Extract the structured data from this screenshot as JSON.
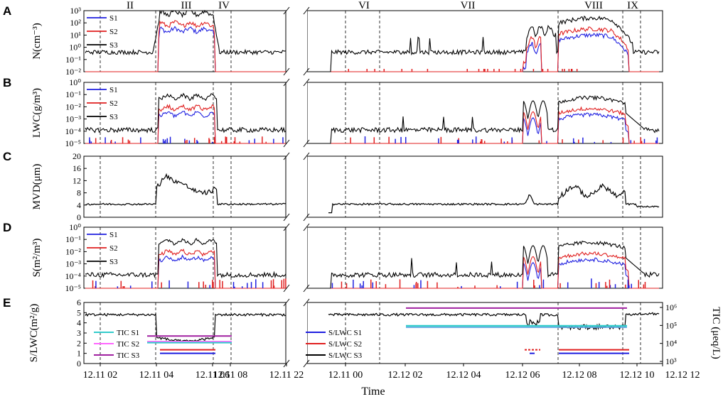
{
  "colors": {
    "s1": "#1f1fe0",
    "s2": "#e01f1f",
    "s3": "#000000",
    "tic_s1": "#33cccc",
    "tic_s2": "#ff66ff",
    "tic_s3": "#a020a0"
  },
  "chart_data": {
    "type": "line",
    "xlabel": "Time",
    "x_ticks_left": [
      "12.11 02",
      "12.11 04",
      "12.11 06",
      "12.11 08",
      "12.11 22"
    ],
    "x_ticks_right": [
      "12.11 00",
      "12.12 02",
      "12.12 04",
      "12.12 06",
      "12.12 08",
      "12.12 10",
      "12.12 12"
    ],
    "periods": [
      "II",
      "III",
      "IV",
      "VI",
      "VII",
      "VIII",
      "IX"
    ],
    "panels": [
      {
        "id": "A",
        "label": "A",
        "ylabel": "N(cm⁻³)",
        "scale": "log",
        "ylim": [
          0.01,
          1000
        ],
        "yticks": [
          "10⁻²",
          "10⁻¹",
          "10⁰",
          "10¹",
          "10²",
          "10³"
        ],
        "legend": [
          "S1",
          "S2",
          "S3"
        ]
      },
      {
        "id": "B",
        "label": "B",
        "ylabel": "LWC(g/m³)",
        "scale": "log",
        "ylim": [
          1e-05,
          1
        ],
        "yticks": [
          "10⁻⁵",
          "10⁻⁴",
          "10⁻³",
          "10⁻²",
          "10⁻¹",
          "10⁰"
        ],
        "legend": [
          "S1",
          "S2",
          "S3"
        ]
      },
      {
        "id": "C",
        "label": "C",
        "ylabel": "MVD(μm)",
        "scale": "linear",
        "ylim": [
          0,
          20
        ],
        "yticks": [
          "0",
          "4",
          "8",
          "12",
          "16",
          "20"
        ]
      },
      {
        "id": "D",
        "label": "D",
        "ylabel": "S(m²/m³)",
        "scale": "log",
        "ylim": [
          1e-05,
          1
        ],
        "yticks": [
          "10⁻⁵",
          "10⁻⁴",
          "10⁻³",
          "10⁻²",
          "10⁻¹",
          "10⁰"
        ],
        "legend": [
          "S1",
          "S2",
          "S3"
        ]
      },
      {
        "id": "E",
        "label": "E",
        "ylabel": "S/LWC(m²/g)",
        "y2label": "TIC (μeq/L)",
        "scale": "linear",
        "ylim": [
          0,
          6
        ],
        "yticks": [
          "0",
          "1",
          "2",
          "3",
          "4",
          "5",
          "6"
        ],
        "y2ticks": [
          "10³",
          "10⁴",
          "10⁵",
          "10⁶"
        ],
        "legend_left": [
          "TIC S1",
          "TIC S2",
          "TIC S3"
        ],
        "legend_right": [
          "S/LWC S1",
          "S/LWC S2",
          "S/LWC S3"
        ]
      }
    ]
  }
}
